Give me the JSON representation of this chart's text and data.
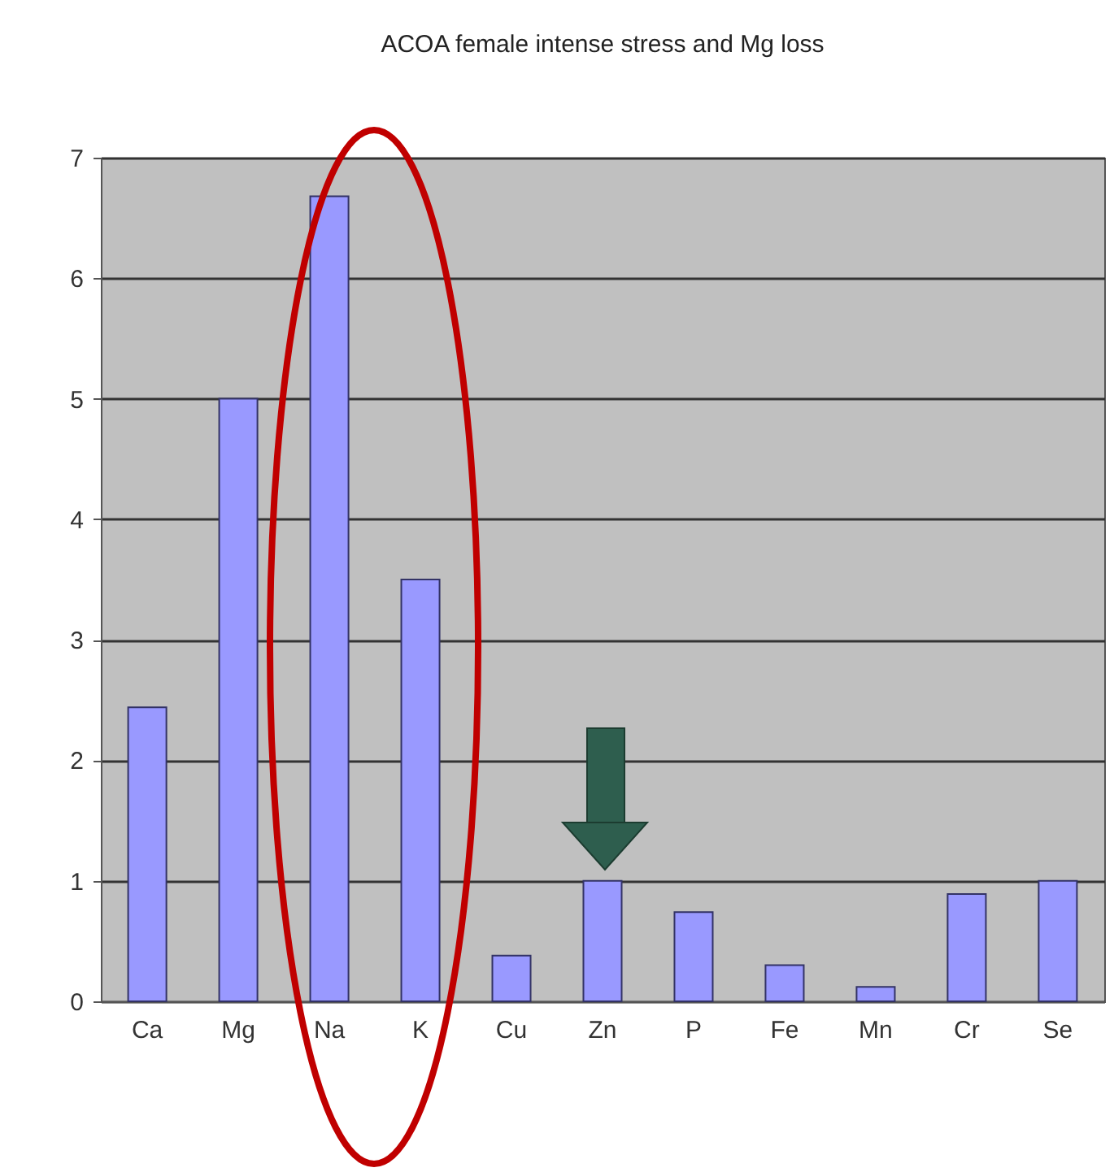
{
  "chart_data": {
    "type": "bar",
    "title": "ACOA  female  intense stress and Mg loss",
    "categories": [
      "Ca",
      "Mg",
      "Na",
      "K",
      "Cu",
      "Zn",
      "P",
      "Fe",
      "Mn",
      "Cr",
      "Se"
    ],
    "values": [
      2.44,
      5.0,
      6.68,
      3.5,
      0.38,
      1.0,
      0.74,
      0.3,
      0.12,
      0.89,
      1.0
    ],
    "color": "#9999ff",
    "ylim": [
      0,
      7
    ],
    "yticks": [
      0,
      1,
      2,
      3,
      4,
      5,
      6,
      7
    ],
    "grid": "y"
  }
}
